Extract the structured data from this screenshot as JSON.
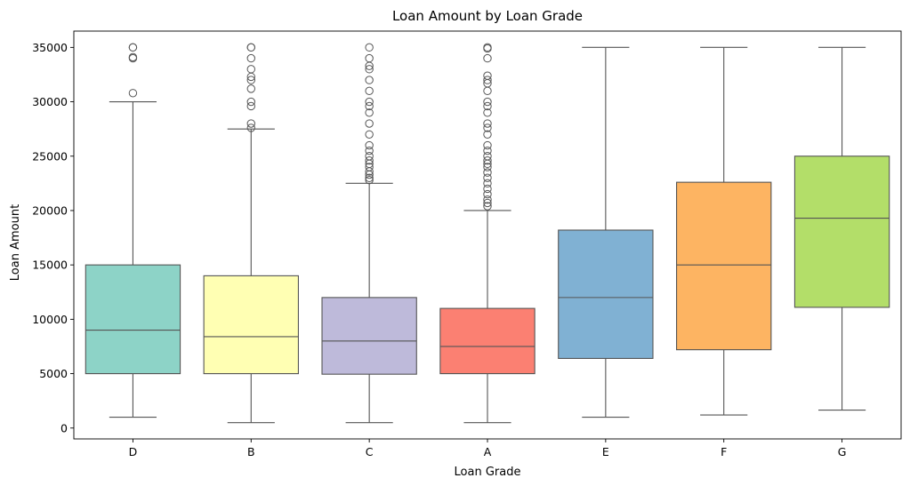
{
  "chart_data": {
    "type": "box",
    "title": "Loan Amount by Loan Grade",
    "xlabel": "Loan Grade",
    "ylabel": "Loan Amount",
    "ylim": [
      -1000,
      36500
    ],
    "yticks": [
      0,
      5000,
      10000,
      15000,
      20000,
      25000,
      30000,
      35000
    ],
    "grid": false,
    "categories": [
      "D",
      "B",
      "C",
      "A",
      "E",
      "F",
      "G"
    ],
    "boxes": [
      {
        "category": "D",
        "whisker_low": 1000,
        "q1": 5000,
        "median": 9000,
        "q3": 15000,
        "whisker_high": 30000,
        "color": "#8dd3c7",
        "outliers": [
          30800,
          34000,
          34100,
          35000,
          35000
        ]
      },
      {
        "category": "B",
        "whisker_low": 500,
        "q1": 5000,
        "median": 8400,
        "q3": 14000,
        "whisker_high": 27500,
        "color": "#ffffb3",
        "outliers": [
          27600,
          28000,
          29600,
          30000,
          31200,
          32000,
          32300,
          33000,
          34000,
          35000,
          35000
        ]
      },
      {
        "category": "C",
        "whisker_low": 500,
        "q1": 4950,
        "median": 8000,
        "q3": 12000,
        "whisker_high": 22500,
        "color": "#bebada",
        "outliers": [
          22800,
          23000,
          23300,
          23600,
          24000,
          24300,
          24600,
          25000,
          25500,
          26000,
          27000,
          28000,
          29000,
          29600,
          30000,
          31000,
          32000,
          33000,
          33300,
          34000,
          35000
        ]
      },
      {
        "category": "A",
        "whisker_low": 500,
        "q1": 5000,
        "median": 7500,
        "q3": 11000,
        "whisker_high": 20000,
        "color": "#fb8072",
        "outliers": [
          20400,
          20700,
          21000,
          21500,
          22000,
          22500,
          23000,
          23500,
          24000,
          24300,
          24600,
          25000,
          25500,
          26000,
          27000,
          27600,
          28000,
          29000,
          29600,
          30000,
          31000,
          31700,
          32000,
          32400,
          34000,
          34900,
          35000
        ]
      },
      {
        "category": "E",
        "whisker_low": 1000,
        "q1": 6400,
        "median": 12000,
        "q3": 18200,
        "whisker_high": 35000,
        "color": "#80b1d3",
        "outliers": []
      },
      {
        "category": "F",
        "whisker_low": 1200,
        "q1": 7200,
        "median": 15000,
        "q3": 22600,
        "whisker_high": 35000,
        "color": "#fdb462",
        "outliers": []
      },
      {
        "category": "G",
        "whisker_low": 1650,
        "q1": 11100,
        "median": 19300,
        "q3": 25000,
        "whisker_high": 35000,
        "color": "#b3de69",
        "outliers": []
      }
    ]
  }
}
